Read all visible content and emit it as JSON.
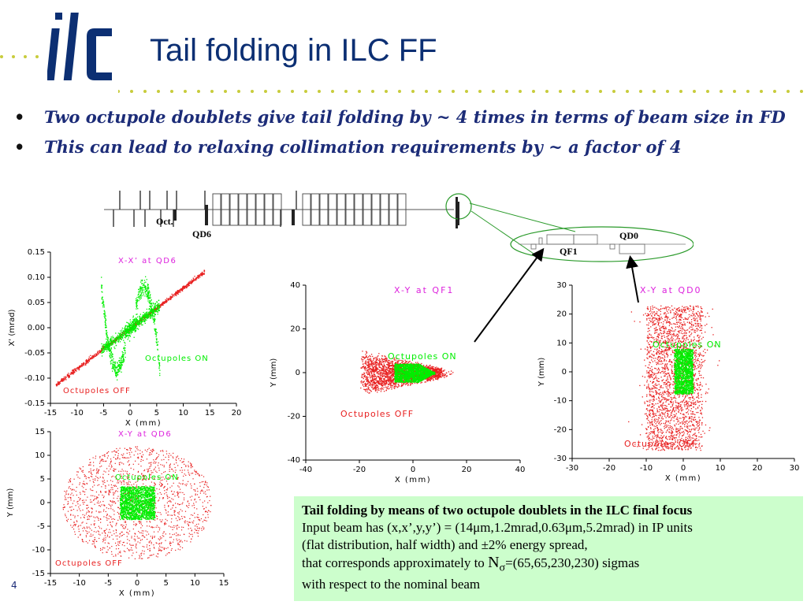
{
  "slide": {
    "title": "Tail folding in ILC FF",
    "logo_text": "ilc",
    "page_number": "4",
    "bullets": [
      "Two octupole doublets give tail folding by ~ 4 times in terms of beam size in FD",
      "This can lead to relaxing collimation requirements by ~ a factor of 4"
    ],
    "bullet_glyph": "•"
  },
  "lattice": {
    "labels": {
      "oct": "Oct.",
      "qd6": "QD6",
      "qd0": "QD0",
      "qf1": "QF1"
    }
  },
  "plots": {
    "xxp_qd6": {
      "title": "X-X’ at QD6",
      "xlabel": "X (mm)",
      "ylabel": "X' (mrad)",
      "xticks": [
        "-15",
        "-10",
        "-5",
        "0",
        "5",
        "10",
        "15",
        "20"
      ],
      "yticks": [
        "0.15",
        "0.10",
        "0.05",
        "0.00",
        "-0.05",
        "-0.10",
        "-0.15"
      ],
      "on_label": "Octupoles ON",
      "off_label": "Octupoles OFF"
    },
    "xy_qd6": {
      "title": "X-Y at QD6",
      "xlabel": "X (mm)",
      "ylabel": "Y (mm)",
      "xticks": [
        "-15",
        "-10",
        "-5",
        "0",
        "5",
        "10",
        "15"
      ],
      "yticks": [
        "15",
        "10",
        "5",
        "0",
        "-5",
        "-10",
        "-15"
      ],
      "on_label": "Octupoles ON",
      "off_label": "Octupoles OFF"
    },
    "xy_qf1": {
      "title": "X-Y at QF1",
      "xlabel": "X (mm)",
      "ylabel": "Y (mm)",
      "xticks": [
        "-40",
        "-20",
        "0",
        "20",
        "40"
      ],
      "yticks": [
        "40",
        "20",
        "0",
        "-20",
        "-40"
      ],
      "on_label": "Octupoles ON",
      "off_label": "Octupoles OFF"
    },
    "xy_qd0": {
      "title": "X-Y at QD0",
      "xlabel": "X (mm)",
      "ylabel": "Y (mm)",
      "xticks": [
        "-30",
        "-20",
        "-10",
        "0",
        "10",
        "20",
        "30"
      ],
      "yticks": [
        "30",
        "20",
        "10",
        "0",
        "-10",
        "-20",
        "-30"
      ],
      "on_label": "Octupoles ON",
      "off_label": "Octupoles OFF"
    }
  },
  "caption": {
    "heading": "Tail folding by means of two octupole doublets in the ILC final focus",
    "line1": "Input beam has (x,x’,y,y’) = (14μm,1.2mrad,0.63μm,5.2mrad) in IP units",
    "line2": "(flat distribution, half width) and ±2% energy spread,",
    "line3_prefix": "that corresponds approximately to ",
    "line3_n": "N",
    "line3_sub": "σ",
    "line3_suffix": "=(65,65,230,230) sigmas",
    "line4": "with respect to the nominal beam"
  },
  "colors": {
    "title": "#0c2f73",
    "bullet_text": "#1c2c78",
    "dots": "#c8cc3c",
    "on_series": "#00ee00",
    "off_series": "#e82020",
    "plot_title": "#dd22dd",
    "caption_bg": "#ccfecc",
    "lattice_green": "#2a9a2a"
  }
}
